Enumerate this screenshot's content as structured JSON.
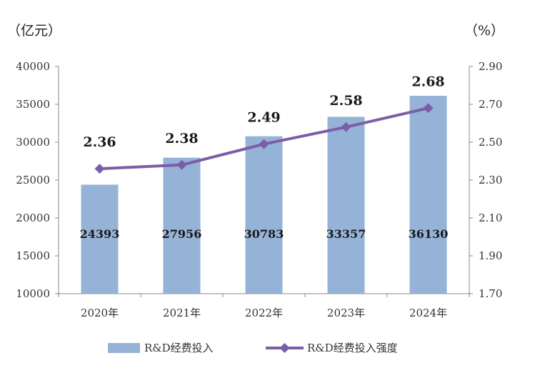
{
  "chart_data": {
    "type": "bar",
    "categories": [
      "2020年",
      "2021年",
      "2022年",
      "2023年",
      "2024年"
    ],
    "series": [
      {
        "name": "R&D经费投入",
        "type": "bar",
        "axis": "left",
        "values": [
          24393,
          27956,
          30783,
          33357,
          36130
        ],
        "labels": [
          "24393",
          "27956",
          "30783",
          "33357",
          "36130"
        ]
      },
      {
        "name": "R&D经费投入强度",
        "type": "line",
        "axis": "right",
        "values": [
          2.36,
          2.38,
          2.49,
          2.58,
          2.68
        ],
        "labels": [
          "2.36",
          "2.38",
          "2.49",
          "2.58",
          "2.68"
        ]
      }
    ],
    "y_left": {
      "unit": "（亿元）",
      "ylim": [
        10000,
        40000
      ],
      "ticks": [
        "10000",
        "15000",
        "20000",
        "25000",
        "30000",
        "35000",
        "40000"
      ]
    },
    "y_right": {
      "unit": "（%）",
      "ylim": [
        1.7,
        2.9
      ],
      "ticks": [
        "1.70",
        "1.90",
        "2.10",
        "2.30",
        "2.50",
        "2.70",
        "2.90"
      ]
    },
    "grid": false,
    "legend": "bottom",
    "colors": {
      "bar": "#95b3d7",
      "line": "#7b5ea7"
    }
  }
}
